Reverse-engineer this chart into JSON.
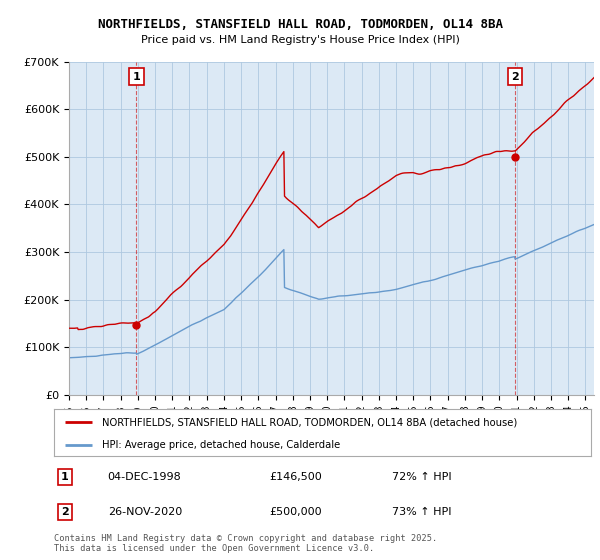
{
  "title_line1": "NORTHFIELDS, STANSFIELD HALL ROAD, TODMORDEN, OL14 8BA",
  "title_line2": "Price paid vs. HM Land Registry's House Price Index (HPI)",
  "red_label": "NORTHFIELDS, STANSFIELD HALL ROAD, TODMORDEN, OL14 8BA (detached house)",
  "blue_label": "HPI: Average price, detached house, Calderdale",
  "sale1_date": "04-DEC-1998",
  "sale1_price": "£146,500",
  "sale1_hpi": "72% ↑ HPI",
  "sale2_date": "26-NOV-2020",
  "sale2_price": "£500,000",
  "sale2_hpi": "73% ↑ HPI",
  "footer": "Contains HM Land Registry data © Crown copyright and database right 2025.\nThis data is licensed under the Open Government Licence v3.0.",
  "ylim": [
    0,
    700000
  ],
  "yticks": [
    0,
    100000,
    200000,
    300000,
    400000,
    500000,
    600000,
    700000
  ],
  "ytick_labels": [
    "£0",
    "£100K",
    "£200K",
    "£300K",
    "£400K",
    "£500K",
    "£600K",
    "£700K"
  ],
  "background_color": "#dce9f5",
  "red_color": "#cc0000",
  "blue_color": "#6699cc",
  "grid_color": "#aec8e0",
  "sale1_year": 1998.92,
  "sale2_year": 2020.9,
  "sale1_value": 146500,
  "sale2_value": 500000,
  "xlim_start": 1995,
  "xlim_end": 2025.5
}
